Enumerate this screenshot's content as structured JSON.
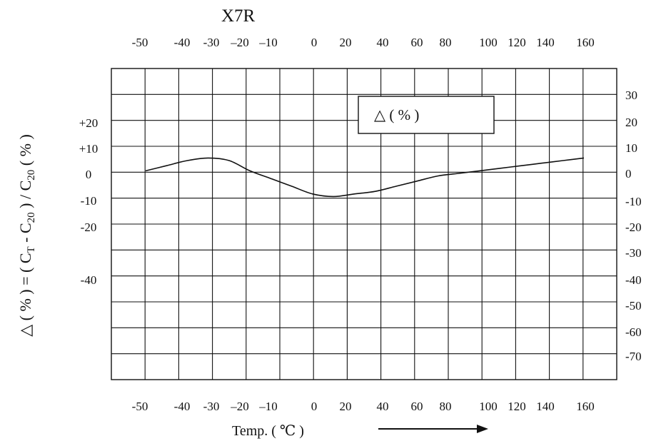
{
  "chart_data": {
    "type": "line",
    "title": "X7R",
    "xlabel": "Temp. ( ℃ )",
    "ylabel_parts": [
      "△ ( % ) = ( C",
      "T",
      " - C",
      "20",
      " ) / C",
      "20",
      " ( % )"
    ],
    "legend": {
      "label": "△ ( % )",
      "placement": "top-right"
    },
    "x_tick_labels": [
      "-50",
      "-40",
      "-30",
      "–20",
      "–10",
      "0",
      "20",
      "40",
      "60",
      "80",
      "100",
      "120",
      "140",
      "160"
    ],
    "y_left_tick_labels": [
      "+20",
      "+10",
      "0",
      "-10",
      "-20",
      "-40"
    ],
    "y_right_tick_labels": [
      "30",
      "20",
      "10",
      "0",
      "-10",
      "-20",
      "-30",
      "-40",
      "-50",
      "-60",
      "-70"
    ],
    "grid": true,
    "xlim": [
      -50,
      160
    ],
    "ylim": [
      -70,
      30
    ],
    "series": [
      {
        "x": [
          -50,
          -40,
          -30,
          -20,
          -10,
          0,
          10,
          20,
          30,
          40,
          50,
          60,
          70,
          80,
          90,
          100,
          110,
          120,
          130,
          140,
          150,
          160
        ],
        "y": [
          1,
          3,
          5,
          6,
          5,
          1,
          -2,
          -5,
          -8,
          -9,
          -8,
          -7,
          -5,
          -3,
          -1,
          0,
          1,
          2,
          3,
          4,
          5,
          6
        ]
      }
    ]
  }
}
